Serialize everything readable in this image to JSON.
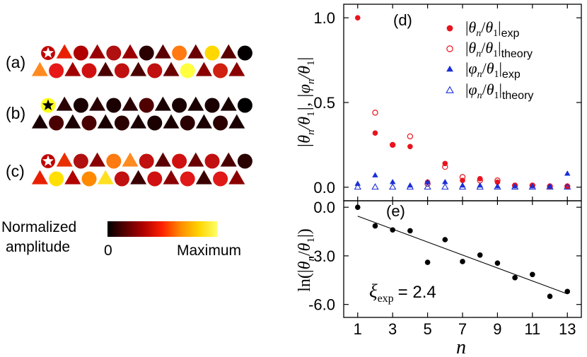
{
  "colors": {
    "exp_red": "#e8141e",
    "exp_blue": "#1a2fd6",
    "axis": "#000000",
    "fit_line": "#000000",
    "star_white": "#ffffff",
    "star_black": "#000000"
  },
  "colormap": {
    "label_line1": "Normalized",
    "label_line2": "amplitude",
    "min_label": "0",
    "max_label": "Maximum",
    "stops": [
      "#000000",
      "#5a0000",
      "#b30000",
      "#ff2200",
      "#ff8c00",
      "#ffd400",
      "#ffff66"
    ]
  },
  "lattices": [
    {
      "label": "(a)",
      "star": "white",
      "top_row": [
        {
          "shape": "circle",
          "color": "#c00000"
        },
        {
          "shape": "triangle",
          "color": "#e82000"
        },
        {
          "shape": "circle",
          "color": "#b00000"
        },
        {
          "shape": "triangle",
          "color": "#9a0000"
        },
        {
          "shape": "circle",
          "color": "#b01010"
        },
        {
          "shape": "triangle",
          "color": "#9a0000"
        },
        {
          "shape": "circle",
          "color": "#2a0000"
        },
        {
          "shape": "triangle",
          "color": "#5a0000"
        },
        {
          "shape": "circle",
          "color": "#ff7a10"
        },
        {
          "shape": "triangle",
          "color": "#6a0000"
        },
        {
          "shape": "circle",
          "color": "#ffd800"
        },
        {
          "shape": "triangle",
          "color": "#5a0000"
        },
        {
          "shape": "circle",
          "color": "#050000"
        }
      ],
      "bottom_row": [
        {
          "shape": "triangle",
          "color": "#ff8a20"
        },
        {
          "shape": "circle",
          "color": "#e81818"
        },
        {
          "shape": "triangle",
          "color": "#a00000"
        },
        {
          "shape": "circle",
          "color": "#d01010"
        },
        {
          "shape": "triangle",
          "color": "#4a0000"
        },
        {
          "shape": "circle",
          "color": "#c01010"
        },
        {
          "shape": "triangle",
          "color": "#4a0000"
        },
        {
          "shape": "circle",
          "color": "#c01010"
        },
        {
          "shape": "triangle",
          "color": "#6a0000"
        },
        {
          "shape": "circle",
          "color": "#ffff40"
        },
        {
          "shape": "triangle",
          "color": "#8a0000"
        },
        {
          "shape": "circle",
          "color": "#d02010"
        },
        {
          "shape": "triangle",
          "color": "#8a0000"
        }
      ]
    },
    {
      "label": "(b)",
      "star": "black",
      "top_row": [
        {
          "shape": "circle",
          "color": "#ffff20"
        },
        {
          "shape": "triangle",
          "color": "#2a0000"
        },
        {
          "shape": "circle",
          "color": "#1a0000"
        },
        {
          "shape": "triangle",
          "color": "#2a0000"
        },
        {
          "shape": "circle",
          "color": "#1a0000"
        },
        {
          "shape": "triangle",
          "color": "#2a0000"
        },
        {
          "shape": "circle",
          "color": "#500000"
        },
        {
          "shape": "triangle",
          "color": "#1a0000"
        },
        {
          "shape": "circle",
          "color": "#1a0000"
        },
        {
          "shape": "triangle",
          "color": "#1a0000"
        },
        {
          "shape": "circle",
          "color": "#1a0000"
        },
        {
          "shape": "triangle",
          "color": "#1a0000"
        },
        {
          "shape": "circle",
          "color": "#000000"
        }
      ],
      "bottom_row": [
        {
          "shape": "triangle",
          "color": "#1a0000"
        },
        {
          "shape": "circle",
          "color": "#4a0000"
        },
        {
          "shape": "triangle",
          "color": "#1a0000"
        },
        {
          "shape": "circle",
          "color": "#4a0000"
        },
        {
          "shape": "triangle",
          "color": "#1a0000"
        },
        {
          "shape": "circle",
          "color": "#2a0000"
        },
        {
          "shape": "triangle",
          "color": "#1a0000"
        },
        {
          "shape": "circle",
          "color": "#1a0000"
        },
        {
          "shape": "triangle",
          "color": "#1a0000"
        },
        {
          "shape": "circle",
          "color": "#2a0000"
        },
        {
          "shape": "triangle",
          "color": "#1a0000"
        },
        {
          "shape": "circle",
          "color": "#2a0000"
        },
        {
          "shape": "triangle",
          "color": "#1a0000"
        }
      ]
    },
    {
      "label": "(c)",
      "star": "white",
      "top_row": [
        {
          "shape": "circle",
          "color": "#c00000"
        },
        {
          "shape": "triangle",
          "color": "#e83000"
        },
        {
          "shape": "circle",
          "color": "#b01010"
        },
        {
          "shape": "triangle",
          "color": "#8a0000"
        },
        {
          "shape": "circle",
          "color": "#ff7a10"
        },
        {
          "shape": "triangle",
          "color": "#ff8a20"
        },
        {
          "shape": "circle",
          "color": "#c01010"
        },
        {
          "shape": "triangle",
          "color": "#5a0000"
        },
        {
          "shape": "circle",
          "color": "#d01010"
        },
        {
          "shape": "triangle",
          "color": "#6a0000"
        },
        {
          "shape": "circle",
          "color": "#c01010"
        },
        {
          "shape": "triangle",
          "color": "#4a0000"
        },
        {
          "shape": "circle",
          "color": "#2a0000"
        }
      ],
      "bottom_row": [
        {
          "shape": "triangle",
          "color": "#e82000"
        },
        {
          "shape": "circle",
          "color": "#ffe000"
        },
        {
          "shape": "triangle",
          "color": "#b00000"
        },
        {
          "shape": "circle",
          "color": "#ff8a00"
        },
        {
          "shape": "triangle",
          "color": "#ffe020"
        },
        {
          "shape": "circle",
          "color": "#c01010"
        },
        {
          "shape": "triangle",
          "color": "#3a0000"
        },
        {
          "shape": "circle",
          "color": "#d01010"
        },
        {
          "shape": "triangle",
          "color": "#8a0000"
        },
        {
          "shape": "circle",
          "color": "#e01818"
        },
        {
          "shape": "triangle",
          "color": "#3a0000"
        },
        {
          "shape": "circle",
          "color": "#e01818"
        },
        {
          "shape": "triangle",
          "color": "#8a0000"
        }
      ]
    }
  ],
  "chart_data": [
    {
      "type": "scatter",
      "panel_label": "(d)",
      "ylabel": "|θ_n/θ_1|, |φ_n/θ_1|",
      "xlim": [
        0.2,
        13.8
      ],
      "ylim": [
        -0.08,
        1.08
      ],
      "yticks": [
        0.0,
        0.5,
        1.0
      ],
      "ytick_labels": [
        "0.0",
        "0.5",
        "1.0"
      ],
      "series": [
        {
          "name": "|θ_n/θ_1|_exp",
          "legend_main": "|θ",
          "legend_sub": "exp",
          "marker": "filled-circle",
          "color": "#e8141e",
          "x": [
            1,
            2,
            3,
            4,
            5,
            6,
            7,
            8,
            9,
            10,
            11,
            12,
            13
          ],
          "y": [
            1.0,
            0.32,
            0.25,
            0.24,
            0.03,
            0.14,
            0.04,
            0.05,
            0.03,
            0.01,
            0.01,
            0.005,
            0.005
          ]
        },
        {
          "name": "|θ_n/θ_1|_theory",
          "legend_main": "|θ",
          "legend_sub": "theory",
          "marker": "open-circle",
          "color": "#e8141e",
          "x": [
            2,
            3,
            4,
            5,
            6,
            7,
            8,
            9,
            10,
            11,
            12,
            13
          ],
          "y": [
            0.44,
            0.25,
            0.3,
            0.02,
            0.12,
            0.06,
            0.04,
            0.04,
            0.01,
            0.01,
            0.005,
            0.005
          ]
        },
        {
          "name": "|φ_n/θ_1|_exp",
          "legend_main": "|φ",
          "legend_sub": "exp",
          "marker": "filled-triangle",
          "color": "#1a2fd6",
          "x": [
            1,
            2,
            3,
            4,
            5,
            6,
            7,
            8,
            9,
            10,
            11,
            12,
            13
          ],
          "y": [
            0.02,
            0.07,
            0.03,
            0.01,
            0.03,
            0.03,
            0.01,
            0.01,
            0.005,
            0.005,
            0.005,
            0.005,
            0.08
          ]
        },
        {
          "name": "|φ_n/θ_1|_theory",
          "legend_main": "|φ",
          "legend_sub": "theory",
          "marker": "open-triangle",
          "color": "#1a2fd6",
          "x": [
            1,
            2,
            3,
            4,
            5,
            6,
            7,
            8,
            9,
            10,
            11,
            12,
            13
          ],
          "y": [
            0.0,
            0.0,
            0.0,
            0.0,
            0.0,
            0.0,
            0.0,
            0.0,
            0.0,
            0.0,
            0.0,
            0.0,
            0.0
          ]
        }
      ]
    },
    {
      "type": "scatter",
      "panel_label": "(e)",
      "ylabel": "ln(|θ_n/θ_1|)",
      "xlabel": "n",
      "xlim": [
        0.2,
        13.8
      ],
      "ylim": [
        -6.8,
        0.4
      ],
      "xticks": [
        1,
        3,
        5,
        7,
        9,
        11,
        13
      ],
      "xtick_labels": [
        "1",
        "3",
        "5",
        "7",
        "9",
        "11",
        "13"
      ],
      "yticks": [
        0.0,
        -3.0,
        -6.0
      ],
      "ytick_labels": [
        "0.0",
        "-3.0",
        "-6.0"
      ],
      "annotation_symbol": "ξ",
      "annotation_sub": "exp",
      "annotation_value": "= 2.4",
      "series": [
        {
          "name": "ln|θ_n/θ_1| exp",
          "marker": "filled-circle",
          "color": "#000000",
          "x": [
            1,
            2,
            3,
            4,
            5,
            6,
            7,
            8,
            9,
            10,
            11,
            12,
            13
          ],
          "y": [
            0.0,
            -1.15,
            -1.4,
            -1.45,
            -3.4,
            -2.0,
            -3.35,
            -2.95,
            -3.45,
            -4.35,
            -4.15,
            -5.5,
            -5.2
          ]
        }
      ],
      "fit_line": {
        "x": [
          1,
          13
        ],
        "y": [
          -0.55,
          -5.35
        ]
      }
    }
  ]
}
